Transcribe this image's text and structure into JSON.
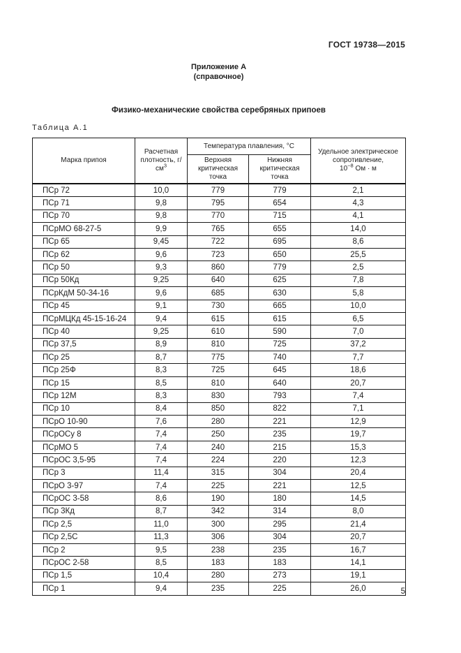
{
  "page": {
    "doc_number": "ГОСТ 19738—2015",
    "appendix_title": "Приложение А",
    "appendix_subtitle": "(справочное)",
    "section_title": "Физико-механические свойства серебряных припоев",
    "table_caption": "Таблица А.1",
    "page_number": "5"
  },
  "table": {
    "headers": {
      "mark": "Марка припоя",
      "density_base": "Расчетная плотность, г/см",
      "density_sup": "3",
      "melting_group": "Температура плавления, °С",
      "upper_point": "Верхняя критическая точка",
      "lower_point": "Нижняя критическая точка",
      "resistance_line1": "Удельное электрическое",
      "resistance_line2": "сопротивление,",
      "resistance_base": "10",
      "resistance_sup": "−8",
      "resistance_unit": " Ом · м"
    },
    "rows": [
      [
        "ПСр 72",
        "10,0",
        "779",
        "779",
        "2,1"
      ],
      [
        "ПСр 71",
        "9,8",
        "795",
        "654",
        "4,3"
      ],
      [
        "ПСр 70",
        "9,8",
        "770",
        "715",
        "4,1"
      ],
      [
        "ПСрМО 68-27-5",
        "9,9",
        "765",
        "655",
        "14,0"
      ],
      [
        "ПСр 65",
        "9,45",
        "722",
        "695",
        "8,6"
      ],
      [
        "ПСр 62",
        "9,6",
        "723",
        "650",
        "25,5"
      ],
      [
        "ПСр 50",
        "9,3",
        "860",
        "779",
        "2,5"
      ],
      [
        "ПСр 50Кд",
        "9,25",
        "640",
        "625",
        "7,8"
      ],
      [
        "ПСрКдМ 50-34-16",
        "9,6",
        "685",
        "630",
        "5,8"
      ],
      [
        "ПСр 45",
        "9,1",
        "730",
        "665",
        "10,0"
      ],
      [
        "ПСрМЦКд 45-15-16-24",
        "9,4",
        "615",
        "615",
        "6,5"
      ],
      [
        "ПСр 40",
        "9,25",
        "610",
        "590",
        "7,0"
      ],
      [
        "ПСр 37,5",
        "8,9",
        "810",
        "725",
        "37,2"
      ],
      [
        "ПСр 25",
        "8,7",
        "775",
        "740",
        "7,7"
      ],
      [
        "ПСр 25Ф",
        "8,3",
        "725",
        "645",
        "18,6"
      ],
      [
        "ПСр 15",
        "8,5",
        "810",
        "640",
        "20,7"
      ],
      [
        "ПСр 12М",
        "8,3",
        "830",
        "793",
        "7,4"
      ],
      [
        "ПСр 10",
        "8,4",
        "850",
        "822",
        "7,1"
      ],
      [
        "ПСрО 10-90",
        "7,6",
        "280",
        "221",
        "12,9"
      ],
      [
        "ПСрОСу 8",
        "7,4",
        "250",
        "235",
        "19,7"
      ],
      [
        "ПСрМО 5",
        "7,4",
        "240",
        "215",
        "15,3"
      ],
      [
        "ПСрОС 3,5-95",
        "7,4",
        "224",
        "220",
        "12,3"
      ],
      [
        "ПСр 3",
        "11,4",
        "315",
        "304",
        "20,4"
      ],
      [
        "ПСрО 3-97",
        "7,4",
        "225",
        "221",
        "12,5"
      ],
      [
        "ПСрОС 3-58",
        "8,6",
        "190",
        "180",
        "14,5"
      ],
      [
        "ПСр 3Кд",
        "8,7",
        "342",
        "314",
        "8,0"
      ],
      [
        "ПСр 2,5",
        "11,0",
        "300",
        "295",
        "21,4"
      ],
      [
        "ПСр 2,5С",
        "11,3",
        "306",
        "304",
        "20,7"
      ],
      [
        "ПСр 2",
        "9,5",
        "238",
        "235",
        "16,7"
      ],
      [
        "ПСрОС 2-58",
        "8,5",
        "183",
        "183",
        "14,1"
      ],
      [
        "ПСр 1,5",
        "10,4",
        "280",
        "273",
        "19,1"
      ],
      [
        "ПСр 1",
        "9,4",
        "235",
        "225",
        "26,0"
      ]
    ]
  }
}
